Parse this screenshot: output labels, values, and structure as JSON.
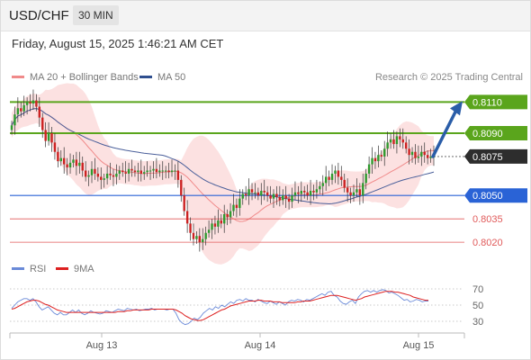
{
  "header": {
    "pair": "USD/CHF",
    "timeframe": "30 MIN"
  },
  "datetime": "Friday, August 15, 2025 1:46:21 AM CET",
  "legend": {
    "ma20": "MA 20 + Bollinger Bands",
    "ma50": "MA 50",
    "research": "Research © 2025 Trading Central"
  },
  "rsi_legend": {
    "rsi": "RSI",
    "ma9": "9MA"
  },
  "colors": {
    "resistance": "#5aa51c",
    "support": "#2a63d6",
    "minor": "#e05a5a",
    "current": "#2d2d2d",
    "arrow": "#2a5da8",
    "ma20": "#f08a8a",
    "band": "#fbd7d7",
    "ma50": "#4a5f9a",
    "bull": "#2f9a2f",
    "bear": "#cc2222",
    "rsi": "#6a8ad8",
    "rsi_ma": "#dd2020"
  },
  "chart_data": {
    "type": "candlestick",
    "price_axis": {
      "min": 0.8012,
      "max": 0.812
    },
    "x_labels": [
      "Aug 13",
      "Aug 14",
      "Aug 15"
    ],
    "levels": [
      {
        "value": 0.811,
        "label": "0.8110",
        "kind": "resistance"
      },
      {
        "value": 0.809,
        "label": "0.8090",
        "kind": "resistance"
      },
      {
        "value": 0.8075,
        "label": "0.8075",
        "kind": "current"
      },
      {
        "value": 0.805,
        "label": "0.8050",
        "kind": "support"
      },
      {
        "value": 0.8035,
        "label": "0.8035",
        "kind": "minor"
      },
      {
        "value": 0.802,
        "label": "0.8020",
        "kind": "minor"
      }
    ],
    "arrow": {
      "from": 0.8075,
      "to": 0.811,
      "direction": "up"
    },
    "close": [
      0.8095,
      0.8102,
      0.8106,
      0.8104,
      0.8108,
      0.811,
      0.8109,
      0.8111,
      0.8107,
      0.81,
      0.8092,
      0.8085,
      0.809,
      0.8084,
      0.8078,
      0.8072,
      0.8074,
      0.807,
      0.8068,
      0.8071,
      0.8073,
      0.8069,
      0.8071,
      0.8066,
      0.8062,
      0.8063,
      0.8067,
      0.8064,
      0.8062,
      0.806,
      0.8061,
      0.8064,
      0.8063,
      0.8062,
      0.8064,
      0.8066,
      0.8065,
      0.8064,
      0.8067,
      0.8066,
      0.8065,
      0.8066,
      0.8064,
      0.8065,
      0.8066,
      0.8066,
      0.8067,
      0.8065,
      0.8066,
      0.8066,
      0.8066,
      0.8065,
      0.8066,
      0.8066,
      0.806,
      0.805,
      0.804,
      0.8032,
      0.8026,
      0.8022,
      0.8024,
      0.802,
      0.8022,
      0.8026,
      0.8028,
      0.8032,
      0.803,
      0.8034,
      0.8032,
      0.8038,
      0.8036,
      0.804,
      0.8044,
      0.8042,
      0.8048,
      0.8051,
      0.805,
      0.8054,
      0.8052,
      0.8052,
      0.805,
      0.8053,
      0.8052,
      0.805,
      0.8048,
      0.8051,
      0.8049,
      0.8047,
      0.805,
      0.8048,
      0.8046,
      0.805,
      0.8052,
      0.8051,
      0.8053,
      0.8052,
      0.805,
      0.8053,
      0.8052,
      0.8054,
      0.8056,
      0.8058,
      0.8062,
      0.806,
      0.8064,
      0.8066,
      0.8062,
      0.806,
      0.8055,
      0.8052,
      0.805,
      0.8052,
      0.8054,
      0.805,
      0.8058,
      0.8064,
      0.807,
      0.8074,
      0.8072,
      0.8076,
      0.8075,
      0.808,
      0.8084,
      0.8086,
      0.8083,
      0.8088,
      0.8086,
      0.8084,
      0.808,
      0.8076,
      0.8078,
      0.8074,
      0.8075,
      0.8078,
      0.8076,
      0.8074,
      0.8075,
      0.8075
    ],
    "rsi": {
      "ticks": [
        70,
        50,
        30
      ],
      "values": [
        46,
        50,
        54,
        56,
        58,
        58,
        56,
        58,
        54,
        48,
        44,
        46,
        48,
        44,
        40,
        38,
        41,
        38,
        38,
        41,
        44,
        41,
        44,
        40,
        38,
        40,
        43,
        41,
        40,
        39,
        40,
        43,
        42,
        41,
        43,
        45,
        44,
        43,
        46,
        45,
        44,
        45,
        43,
        44,
        45,
        45,
        46,
        44,
        45,
        45,
        45,
        44,
        45,
        45,
        40,
        32,
        28,
        26,
        27,
        30,
        34,
        32,
        35,
        40,
        43,
        46,
        44,
        48,
        46,
        50,
        48,
        51,
        54,
        52,
        56,
        57,
        55,
        58,
        56,
        56,
        54,
        57,
        55,
        53,
        52,
        55,
        53,
        51,
        54,
        52,
        50,
        54,
        56,
        55,
        57,
        56,
        54,
        57,
        56,
        58,
        60,
        62,
        64,
        62,
        66,
        67,
        62,
        60,
        55,
        52,
        51,
        54,
        56,
        52,
        60,
        64,
        67,
        68,
        66,
        68,
        66,
        68,
        69,
        68,
        65,
        66,
        64,
        62,
        59,
        56,
        57,
        54,
        55,
        57,
        56,
        54,
        55,
        55
      ],
      "ma9": [
        45,
        46,
        48,
        50,
        52,
        54,
        55,
        56,
        56,
        55,
        53,
        51,
        50,
        48,
        46,
        44,
        43,
        42,
        41,
        41,
        41,
        41,
        41,
        41,
        41,
        41,
        41,
        41,
        41,
        41,
        41,
        41,
        41,
        41,
        41,
        42,
        42,
        42,
        43,
        43,
        44,
        44,
        44,
        44,
        44,
        44,
        45,
        45,
        45,
        45,
        45,
        45,
        45,
        45,
        44,
        42,
        40,
        37,
        35,
        33,
        32,
        31,
        31,
        32,
        34,
        36,
        38,
        40,
        42,
        44,
        45,
        47,
        49,
        50,
        51,
        52,
        53,
        54,
        55,
        55,
        55,
        56,
        56,
        55,
        55,
        55,
        54,
        54,
        54,
        53,
        53,
        53,
        53,
        53,
        54,
        54,
        55,
        55,
        55,
        56,
        57,
        58,
        59,
        60,
        61,
        62,
        62,
        62,
        61,
        60,
        59,
        58,
        57,
        56,
        57,
        58,
        60,
        61,
        62,
        63,
        64,
        65,
        66,
        67,
        67,
        67,
        66,
        66,
        65,
        64,
        63,
        62,
        60,
        59,
        58,
        57,
        56,
        56
      ]
    }
  }
}
